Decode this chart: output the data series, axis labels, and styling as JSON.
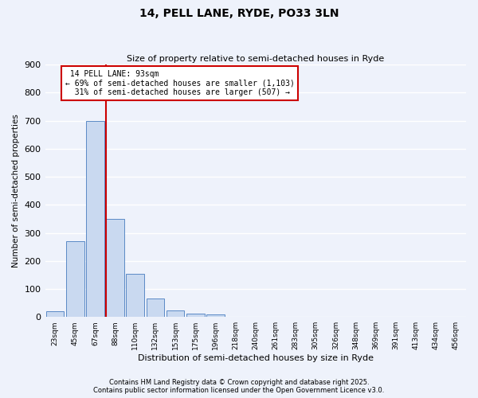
{
  "title": "14, PELL LANE, RYDE, PO33 3LN",
  "subtitle": "Size of property relative to semi-detached houses in Ryde",
  "xlabel": "Distribution of semi-detached houses by size in Ryde",
  "ylabel": "Number of semi-detached properties",
  "bin_labels": [
    "23sqm",
    "45sqm",
    "67sqm",
    "88sqm",
    "110sqm",
    "132sqm",
    "153sqm",
    "175sqm",
    "196sqm",
    "218sqm",
    "240sqm",
    "261sqm",
    "283sqm",
    "305sqm",
    "326sqm",
    "348sqm",
    "369sqm",
    "391sqm",
    "413sqm",
    "434sqm",
    "456sqm"
  ],
  "bar_values": [
    20,
    270,
    700,
    350,
    155,
    65,
    22,
    12,
    8,
    0,
    0,
    0,
    0,
    0,
    0,
    0,
    0,
    0,
    0,
    0,
    0
  ],
  "bar_color": "#c9d9f0",
  "bar_edge_color": "#5a8ac6",
  "property_line_label": "14 PELL LANE: 93sqm",
  "pct_smaller": 69,
  "pct_larger": 31,
  "count_smaller": 1103,
  "count_larger": 507,
  "line_color": "#cc0000",
  "ylim": [
    0,
    900
  ],
  "yticks": [
    0,
    100,
    200,
    300,
    400,
    500,
    600,
    700,
    800,
    900
  ],
  "background_color": "#eef2fb",
  "grid_color": "#ffffff",
  "footnote1": "Contains HM Land Registry data © Crown copyright and database right 2025.",
  "footnote2": "Contains public sector information licensed under the Open Government Licence v3.0."
}
